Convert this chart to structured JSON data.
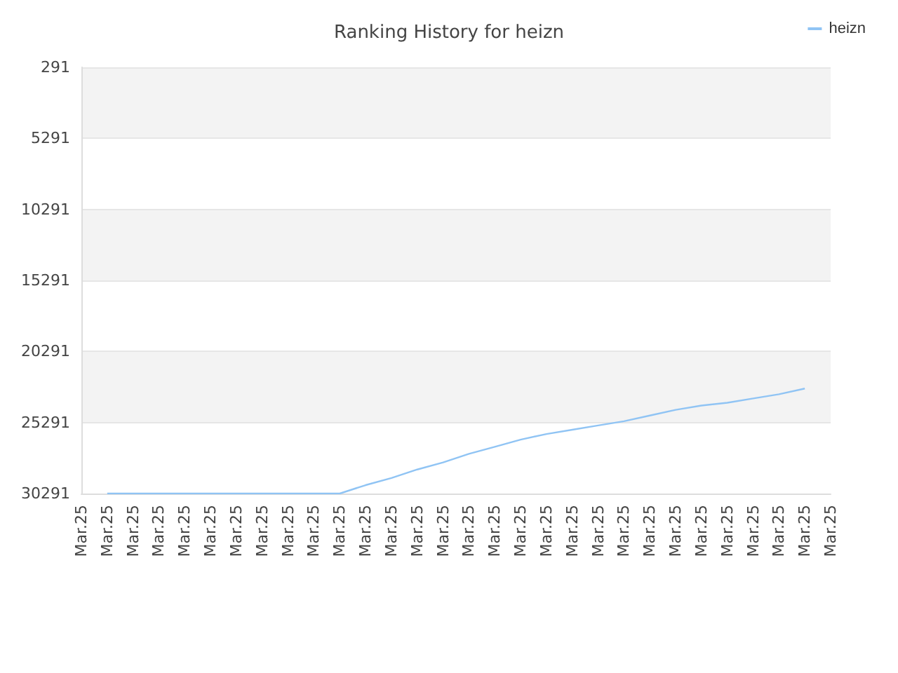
{
  "chart_data": {
    "type": "line",
    "title": "Ranking History for heizn",
    "categories": [
      "Mar.25",
      "Mar.25",
      "Mar.25",
      "Mar.25",
      "Mar.25",
      "Mar.25",
      "Mar.25",
      "Mar.25",
      "Mar.25",
      "Mar.25",
      "Mar.25",
      "Mar.25",
      "Mar.25",
      "Mar.25",
      "Mar.25",
      "Mar.25",
      "Mar.25",
      "Mar.25",
      "Mar.25",
      "Mar.25",
      "Mar.25",
      "Mar.25",
      "Mar.25",
      "Mar.25",
      "Mar.25",
      "Mar.25",
      "Mar.25",
      "Mar.25",
      "Mar.25",
      "Mar.25"
    ],
    "series": [
      {
        "name": "heizn",
        "color": "#90c4f4",
        "values": [
          null,
          30291,
          30291,
          30291,
          30291,
          30291,
          30291,
          30291,
          30291,
          30291,
          30291,
          29700,
          29200,
          28600,
          28100,
          27500,
          27000,
          26500,
          26100,
          25800,
          25500,
          25200,
          24800,
          24400,
          24100,
          23900,
          23600,
          23300,
          22900,
          null
        ]
      }
    ],
    "ylim": [
      30291,
      291
    ],
    "yticks": [
      291,
      5291,
      10291,
      15291,
      20291,
      25291,
      30291
    ],
    "grid": "y",
    "legend": "top right",
    "marker": "none",
    "line_style": "solid"
  }
}
